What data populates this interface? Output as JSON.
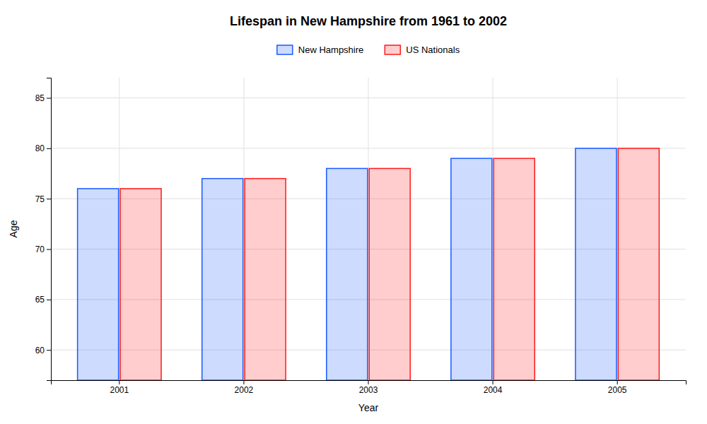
{
  "chart_data": {
    "type": "bar",
    "title": "Lifespan in New Hampshire from 1961 to 2002",
    "x_label": "Year",
    "y_label": "Age",
    "categories": [
      "2001",
      "2002",
      "2003",
      "2004",
      "2005"
    ],
    "series": [
      {
        "name": "New Hampshire",
        "color": "#1a5aff",
        "values": [
          76,
          77,
          78,
          79,
          80
        ]
      },
      {
        "name": "US Nationals",
        "color": "#ff1a1a",
        "values": [
          76,
          77,
          78,
          79,
          80
        ]
      }
    ],
    "ylim": [
      57,
      87
    ],
    "yticks": [
      60,
      65,
      70,
      75,
      80,
      85
    ],
    "grid": true,
    "legend": "top"
  }
}
